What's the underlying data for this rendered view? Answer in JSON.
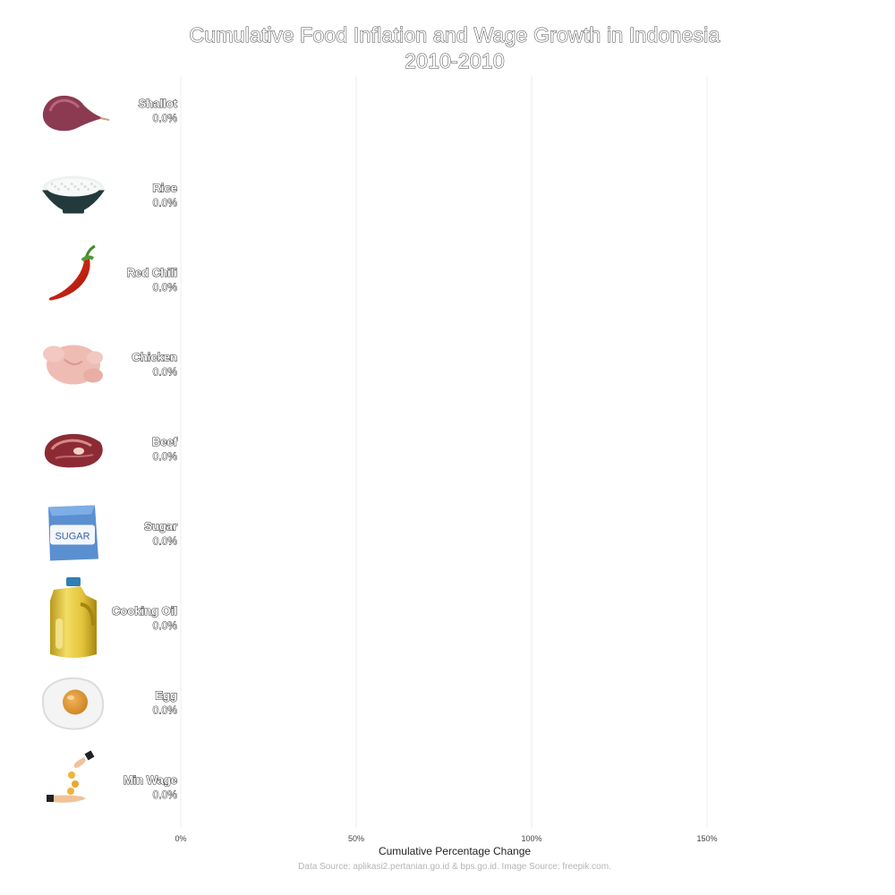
{
  "chart_data": {
    "type": "bar",
    "orientation": "horizontal",
    "title": "Cumulative Food Inflation and Wage Growth in Indonesia",
    "subtitle": "2010-2010",
    "xlabel": "Cumulative Percentage Change",
    "ylabel": "",
    "xlim": [
      0,
      1.75
    ],
    "xticks": [
      0,
      0.5,
      1.0,
      1.5
    ],
    "xtick_labels": [
      "0%",
      "50%",
      "100%",
      "150%"
    ],
    "categories": [
      "Shallot",
      "Rice",
      "Red Chili",
      "Chicken",
      "Beef",
      "Sugar",
      "Cooking Oil",
      "Egg",
      "Min Wage"
    ],
    "values": [
      0.0,
      0.0,
      0.0,
      0.0,
      0.0,
      0.0,
      0.0,
      0.0,
      0.0
    ],
    "value_labels": [
      "0.0%",
      "0.0%",
      "0.0%",
      "0.0%",
      "0.0%",
      "0.0%",
      "0.0%",
      "0.0%",
      "0.0%"
    ],
    "icons": [
      "shallot-icon",
      "rice-bowl-icon",
      "red-chili-icon",
      "chicken-icon",
      "beef-icon",
      "sugar-bag-icon",
      "cooking-oil-bottle-icon",
      "fried-egg-icon",
      "wage-coins-hand-icon"
    ],
    "grid": "vertical",
    "legend": "none",
    "caption": "Data Source: aplikasi2.pertanian.go.id & bps.go.id. Image Source: freepik.com."
  }
}
